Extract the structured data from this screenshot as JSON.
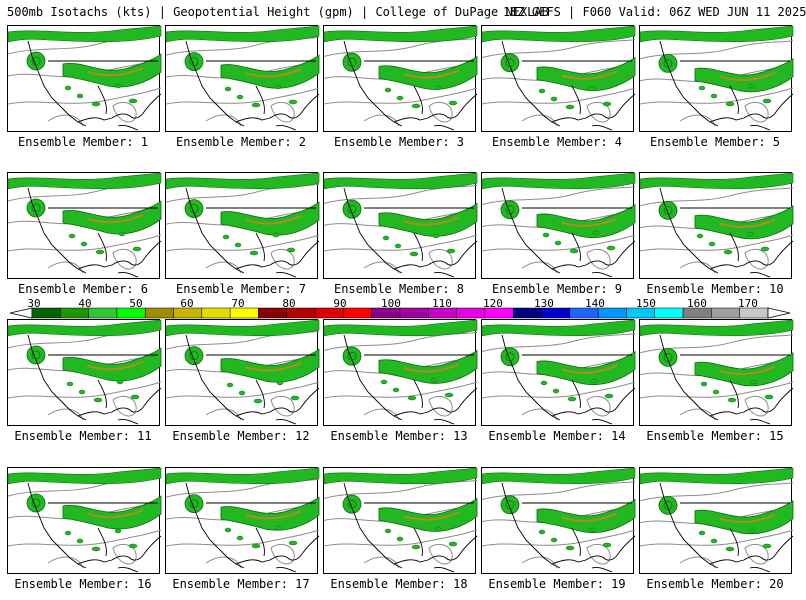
{
  "header": {
    "title": "500mb Isotachs (kts) | Geopotential Height (gpm) | College of DuPage NEXLAB",
    "run_info": "18Z GEFS | F060 Valid: 06Z WED JUN 11 2025"
  },
  "members": [
    {
      "label": "Ensemble Member: 1"
    },
    {
      "label": "Ensemble Member: 2"
    },
    {
      "label": "Ensemble Member: 3"
    },
    {
      "label": "Ensemble Member: 4"
    },
    {
      "label": "Ensemble Member: 5"
    },
    {
      "label": "Ensemble Member: 6"
    },
    {
      "label": "Ensemble Member: 7"
    },
    {
      "label": "Ensemble Member: 8"
    },
    {
      "label": "Ensemble Member: 9"
    },
    {
      "label": "Ensemble Member: 10"
    },
    {
      "label": "Ensemble Member: 11"
    },
    {
      "label": "Ensemble Member: 12"
    },
    {
      "label": "Ensemble Member: 13"
    },
    {
      "label": "Ensemble Member: 14"
    },
    {
      "label": "Ensemble Member: 15"
    },
    {
      "label": "Ensemble Member: 16"
    },
    {
      "label": "Ensemble Member: 17"
    },
    {
      "label": "Ensemble Member: 18"
    },
    {
      "label": "Ensemble Member: 19"
    },
    {
      "label": "Ensemble Member: 20"
    }
  ],
  "color_scale": {
    "labels": [
      "30",
      "40",
      "50",
      "60",
      "70",
      "80",
      "90",
      "100",
      "110",
      "120",
      "130",
      "140",
      "150",
      "160",
      "170"
    ],
    "colors": [
      "#006400",
      "#1e9600",
      "#32c832",
      "#00ff00",
      "#a08c00",
      "#c8b400",
      "#e6dc00",
      "#ffff00",
      "#8b0000",
      "#b40000",
      "#dc0000",
      "#ff0000",
      "#8b008b",
      "#a000a0",
      "#c800c8",
      "#e600e6",
      "#ff00ff",
      "#000080",
      "#0000cd",
      "#1e64ff",
      "#0096ff",
      "#00c8ff",
      "#00ffff",
      "#808080",
      "#a0a0a0",
      "#c8c8c8"
    ]
  },
  "map_colors": {
    "jet_light": "#22b822",
    "jet_dark": "#0a6e0a",
    "jet_core": "#b08c1e",
    "height_contour": "#8c8c8c",
    "coastline": "#000000"
  }
}
